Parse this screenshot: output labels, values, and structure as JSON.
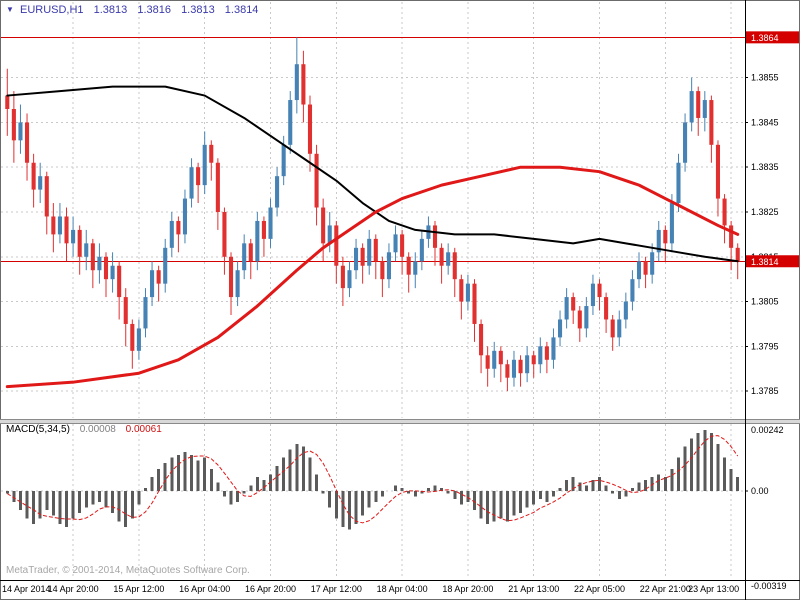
{
  "header": {
    "marker": "▼",
    "symbol_period": "EURUSD,H1",
    "open": "1.3813",
    "high": "1.3816",
    "low": "1.3813",
    "close": "1.3814"
  },
  "watermark": "MetaTrader, © 2001-2014, MetaQuotes Software Corp.",
  "macd_panel": {
    "label": "MACD(5,34,5)",
    "value_main": "0.00008",
    "value_signal": "0.00061"
  },
  "price_axis": {
    "ticks": [
      "1.3855",
      "1.3845",
      "1.3835",
      "1.3825",
      "1.3815",
      "1.3805",
      "1.3795",
      "1.3785"
    ]
  },
  "time_axis": {
    "labels": [
      "14 Apr 2014",
      "14 Apr 20:00",
      "15 Apr 12:00",
      "16 Apr 04:00",
      "16 Apr 20:00",
      "17 Apr 12:00",
      "18 Apr 04:00",
      "18 Apr 20:00",
      "21 Apr 13:00",
      "22 Apr 05:00",
      "22 Apr 21:00",
      "23 Apr 13:00"
    ],
    "tick_bars": [
      0,
      10,
      20,
      30,
      40,
      50,
      60,
      70,
      80,
      90,
      100,
      110
    ]
  },
  "colors": {
    "background": "#ffffff",
    "grid": "#c9c9c9",
    "bull": "#4682b4",
    "bear": "#e03030",
    "macd_hist": "#5a5a5a",
    "macd_signal": "#e01818",
    "level_line": "#d40000",
    "badge_bg": "#d40000",
    "badge_text": "#ffffff",
    "header_text": "#3a3aad",
    "axis_text": "#000000",
    "watermark_text": "#a6a6a6"
  },
  "chart_data": [
    {
      "type": "candlestick",
      "title": "EURUSD,H1",
      "timeframe": "H1",
      "x_range": "14 Apr 2014 00:00 – 23 Apr 2014 13:00",
      "ylim": [
        1.3779,
        1.3871
      ],
      "levels": [
        {
          "value": 1.3864,
          "label": "1.3864"
        },
        {
          "value": 1.3814,
          "label": "1.3814"
        }
      ],
      "overlays": [
        {
          "name": "ma-fast-black",
          "color": "#000000",
          "width": 2,
          "points": [
            [
              0,
              1.3851
            ],
            [
              8,
              1.3852
            ],
            [
              16,
              1.3853
            ],
            [
              24,
              1.3853
            ],
            [
              30,
              1.3851
            ],
            [
              36,
              1.3846
            ],
            [
              42,
              1.384
            ],
            [
              46,
              1.3836
            ],
            [
              50,
              1.3832
            ],
            [
              54,
              1.3827
            ],
            [
              58,
              1.3823
            ],
            [
              62,
              1.3821
            ],
            [
              68,
              1.382
            ],
            [
              74,
              1.382
            ],
            [
              80,
              1.3819
            ],
            [
              86,
              1.3818
            ],
            [
              90,
              1.3819
            ],
            [
              94,
              1.3818
            ],
            [
              98,
              1.3817
            ],
            [
              102,
              1.3816
            ],
            [
              106,
              1.3815
            ],
            [
              111,
              1.3814
            ]
          ]
        },
        {
          "name": "ma-slow-red",
          "color": "#e01818",
          "width": 3,
          "points": [
            [
              0,
              1.3786
            ],
            [
              10,
              1.3787
            ],
            [
              20,
              1.3789
            ],
            [
              26,
              1.3792
            ],
            [
              32,
              1.3797
            ],
            [
              38,
              1.3804
            ],
            [
              44,
              1.3812
            ],
            [
              48,
              1.3817
            ],
            [
              52,
              1.3821
            ],
            [
              56,
              1.3825
            ],
            [
              60,
              1.3828
            ],
            [
              66,
              1.3831
            ],
            [
              72,
              1.3833
            ],
            [
              78,
              1.3835
            ],
            [
              84,
              1.3835
            ],
            [
              90,
              1.3834
            ],
            [
              96,
              1.3831
            ],
            [
              100,
              1.3828
            ],
            [
              104,
              1.3825
            ],
            [
              108,
              1.3822
            ],
            [
              111,
              1.382
            ]
          ]
        }
      ],
      "candles_ohlc": [
        [
          1.3851,
          1.3857,
          1.3842,
          1.3848
        ],
        [
          1.3848,
          1.3852,
          1.3836,
          1.3841
        ],
        [
          1.3841,
          1.3849,
          1.3838,
          1.3845
        ],
        [
          1.3845,
          1.3847,
          1.3832,
          1.3836
        ],
        [
          1.3836,
          1.3838,
          1.3826,
          1.383
        ],
        [
          1.383,
          1.3836,
          1.3827,
          1.3833
        ],
        [
          1.3833,
          1.3834,
          1.382,
          1.3824
        ],
        [
          1.3824,
          1.3827,
          1.3816,
          1.382
        ],
        [
          1.382,
          1.3827,
          1.3818,
          1.3824
        ],
        [
          1.3824,
          1.3826,
          1.3814,
          1.3818
        ],
        [
          1.3818,
          1.3824,
          1.3815,
          1.3821
        ],
        [
          1.3821,
          1.3822,
          1.3811,
          1.3815
        ],
        [
          1.3815,
          1.3821,
          1.3812,
          1.3818
        ],
        [
          1.3818,
          1.3819,
          1.3808,
          1.3812
        ],
        [
          1.3812,
          1.3818,
          1.3809,
          1.3815
        ],
        [
          1.3815,
          1.3816,
          1.3806,
          1.381
        ],
        [
          1.381,
          1.3816,
          1.3807,
          1.3813
        ],
        [
          1.3813,
          1.3814,
          1.3801,
          1.3806
        ],
        [
          1.3806,
          1.3808,
          1.3795,
          1.38
        ],
        [
          1.38,
          1.3801,
          1.379,
          1.3794
        ],
        [
          1.3794,
          1.3801,
          1.3792,
          1.3799
        ],
        [
          1.3799,
          1.3808,
          1.3797,
          1.3806
        ],
        [
          1.3806,
          1.3814,
          1.3804,
          1.3812
        ],
        [
          1.3812,
          1.3813,
          1.3805,
          1.3809
        ],
        [
          1.3809,
          1.3819,
          1.3807,
          1.3817
        ],
        [
          1.3817,
          1.3825,
          1.3815,
          1.3823
        ],
        [
          1.3823,
          1.3824,
          1.3816,
          1.382
        ],
        [
          1.382,
          1.383,
          1.3818,
          1.3828
        ],
        [
          1.3828,
          1.3837,
          1.3826,
          1.3835
        ],
        [
          1.3835,
          1.3836,
          1.3827,
          1.3831
        ],
        [
          1.3831,
          1.3843,
          1.3829,
          1.384
        ],
        [
          1.384,
          1.3841,
          1.3832,
          1.3836
        ],
        [
          1.3836,
          1.3837,
          1.3821,
          1.3825
        ],
        [
          1.3825,
          1.3826,
          1.3811,
          1.3815
        ],
        [
          1.3815,
          1.3816,
          1.3802,
          1.3806
        ],
        [
          1.3806,
          1.3814,
          1.3804,
          1.3812
        ],
        [
          1.3812,
          1.382,
          1.381,
          1.3818
        ],
        [
          1.3818,
          1.3819,
          1.381,
          1.3814
        ],
        [
          1.3814,
          1.3825,
          1.3812,
          1.3823
        ],
        [
          1.3823,
          1.3824,
          1.3815,
          1.3819
        ],
        [
          1.3819,
          1.3828,
          1.3817,
          1.3826
        ],
        [
          1.3826,
          1.3835,
          1.3824,
          1.3833
        ],
        [
          1.3833,
          1.3842,
          1.3831,
          1.384
        ],
        [
          1.384,
          1.3852,
          1.3838,
          1.385
        ],
        [
          1.385,
          1.3864,
          1.3847,
          1.3858
        ],
        [
          1.3858,
          1.3861,
          1.3845,
          1.3849
        ],
        [
          1.3849,
          1.3851,
          1.3834,
          1.3838
        ],
        [
          1.3838,
          1.384,
          1.3822,
          1.3826
        ],
        [
          1.3826,
          1.3828,
          1.3814,
          1.3818
        ],
        [
          1.3818,
          1.3825,
          1.3816,
          1.3822
        ],
        [
          1.3822,
          1.3823,
          1.3809,
          1.3813
        ],
        [
          1.3813,
          1.3815,
          1.3804,
          1.3808
        ],
        [
          1.3808,
          1.3814,
          1.3806,
          1.3812
        ],
        [
          1.3812,
          1.3819,
          1.381,
          1.3817
        ],
        [
          1.3817,
          1.3818,
          1.3809,
          1.3813
        ],
        [
          1.3813,
          1.3821,
          1.3811,
          1.3819
        ],
        [
          1.3819,
          1.382,
          1.381,
          1.3814
        ],
        [
          1.3814,
          1.3815,
          1.3806,
          1.381
        ],
        [
          1.381,
          1.3818,
          1.3808,
          1.3816
        ],
        [
          1.3816,
          1.3822,
          1.3814,
          1.382
        ],
        [
          1.382,
          1.3821,
          1.3811,
          1.3815
        ],
        [
          1.3815,
          1.3816,
          1.3807,
          1.3811
        ],
        [
          1.3811,
          1.3816,
          1.3808,
          1.3814
        ],
        [
          1.3814,
          1.3821,
          1.3812,
          1.3819
        ],
        [
          1.3819,
          1.3824,
          1.3817,
          1.3822
        ],
        [
          1.3822,
          1.3823,
          1.3813,
          1.3817
        ],
        [
          1.3817,
          1.3818,
          1.3809,
          1.3813
        ],
        [
          1.3813,
          1.3818,
          1.3811,
          1.3816
        ],
        [
          1.3816,
          1.3817,
          1.3806,
          1.381
        ],
        [
          1.381,
          1.3811,
          1.3801,
          1.3805
        ],
        [
          1.3805,
          1.3811,
          1.3803,
          1.3809
        ],
        [
          1.3809,
          1.381,
          1.3796,
          1.38
        ],
        [
          1.38,
          1.3801,
          1.3789,
          1.3793
        ],
        [
          1.3793,
          1.3795,
          1.3786,
          1.379
        ],
        [
          1.379,
          1.3796,
          1.3788,
          1.3794
        ],
        [
          1.3794,
          1.3795,
          1.3787,
          1.3791
        ],
        [
          1.3791,
          1.3792,
          1.3785,
          1.3788
        ],
        [
          1.3788,
          1.3794,
          1.3786,
          1.3792
        ],
        [
          1.3792,
          1.3793,
          1.3786,
          1.3789
        ],
        [
          1.3789,
          1.3795,
          1.3787,
          1.3793
        ],
        [
          1.3793,
          1.3794,
          1.3788,
          1.3791
        ],
        [
          1.3791,
          1.3797,
          1.3789,
          1.3795
        ],
        [
          1.3795,
          1.3796,
          1.3789,
          1.3792
        ],
        [
          1.3792,
          1.3799,
          1.379,
          1.3797
        ],
        [
          1.3797,
          1.3803,
          1.3795,
          1.3801
        ],
        [
          1.3801,
          1.3808,
          1.3799,
          1.3806
        ],
        [
          1.3806,
          1.3807,
          1.38,
          1.3803
        ],
        [
          1.3803,
          1.3804,
          1.3796,
          1.3799
        ],
        [
          1.3799,
          1.3806,
          1.3797,
          1.3804
        ],
        [
          1.3804,
          1.3811,
          1.3802,
          1.3809
        ],
        [
          1.3809,
          1.381,
          1.3803,
          1.3806
        ],
        [
          1.3806,
          1.3807,
          1.3798,
          1.3801
        ],
        [
          1.3801,
          1.3802,
          1.3794,
          1.3797
        ],
        [
          1.3797,
          1.3803,
          1.3795,
          1.3801
        ],
        [
          1.3801,
          1.3807,
          1.3799,
          1.3805
        ],
        [
          1.3805,
          1.3812,
          1.3803,
          1.381
        ],
        [
          1.381,
          1.3816,
          1.3808,
          1.3814
        ],
        [
          1.3814,
          1.3815,
          1.3808,
          1.3811
        ],
        [
          1.3811,
          1.3818,
          1.3809,
          1.3816
        ],
        [
          1.3816,
          1.3823,
          1.3814,
          1.3821
        ],
        [
          1.3821,
          1.3822,
          1.3814,
          1.3818
        ],
        [
          1.3818,
          1.3829,
          1.3816,
          1.3827
        ],
        [
          1.3827,
          1.3838,
          1.3825,
          1.3836
        ],
        [
          1.3836,
          1.3847,
          1.3834,
          1.3845
        ],
        [
          1.3845,
          1.3855,
          1.3843,
          1.3852
        ],
        [
          1.3852,
          1.3853,
          1.3842,
          1.3846
        ],
        [
          1.3846,
          1.3852,
          1.3843,
          1.385
        ],
        [
          1.385,
          1.3851,
          1.3836,
          1.384
        ],
        [
          1.384,
          1.3841,
          1.3824,
          1.3828
        ],
        [
          1.3828,
          1.3829,
          1.3818,
          1.3822
        ],
        [
          1.3822,
          1.3823,
          1.3812,
          1.3817
        ],
        [
          1.3817,
          1.3818,
          1.381,
          1.3814
        ]
      ]
    },
    {
      "type": "bar",
      "title": "MACD(5,34,5)",
      "ylim": [
        -0.00319,
        0.00242
      ],
      "signal_period": 5,
      "axis_labels": {
        "top": "0.00242",
        "zero": "0.00",
        "bottom": "-0.00319"
      },
      "values": [
        -0.0001,
        -0.0004,
        -0.0007,
        -0.001,
        -0.0012,
        -0.001,
        -0.0007,
        -0.0009,
        -0.0012,
        -0.0013,
        -0.001,
        -0.0008,
        -0.0006,
        -0.0005,
        -0.0004,
        -0.0006,
        -0.0008,
        -0.0011,
        -0.0013,
        -0.001,
        -0.0005,
        0.0001,
        0.0005,
        0.0008,
        0.001,
        0.0012,
        0.0013,
        0.0014,
        0.0013,
        0.0011,
        0.0012,
        0.0008,
        0.0003,
        -0.0002,
        -0.0005,
        -0.0004,
        -0.0001,
        0.0002,
        0.0005,
        0.0004,
        0.0006,
        0.0009,
        0.0012,
        0.0015,
        0.0017,
        0.0016,
        0.0012,
        0.0006,
        -0.0001,
        -0.0006,
        -0.001,
        -0.0013,
        -0.0014,
        -0.0012,
        -0.0009,
        -0.0006,
        -0.0004,
        -0.0002,
        0.0,
        0.0002,
        0.0001,
        -0.0001,
        -0.0002,
        -0.0001,
        0.0001,
        0.0002,
        0.0001,
        -0.0001,
        -0.0003,
        -0.0005,
        -0.0004,
        -0.0007,
        -0.001,
        -0.0012,
        -0.0011,
        -0.001,
        -0.0011,
        -0.0009,
        -0.0008,
        -0.0006,
        -0.0005,
        -0.0003,
        -0.0004,
        -0.0002,
        0.0001,
        0.0004,
        0.0005,
        0.0003,
        0.0002,
        0.0004,
        0.0005,
        0.0002,
        -0.0001,
        -0.0003,
        -0.0002,
        0.0001,
        0.0003,
        0.0004,
        0.0005,
        0.0006,
        0.0005,
        0.0008,
        0.0012,
        0.0016,
        0.0019,
        0.0021,
        0.0022,
        0.0021,
        0.0017,
        0.0012,
        0.0008,
        0.0005
      ]
    }
  ]
}
